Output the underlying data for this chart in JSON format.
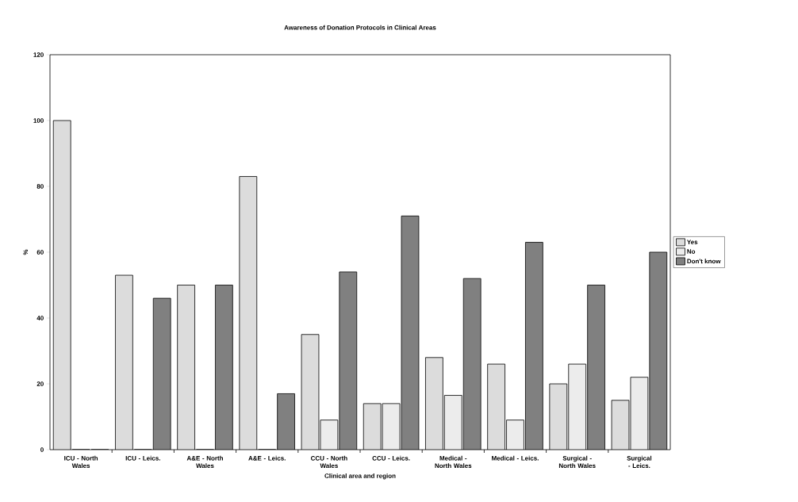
{
  "chart_data": {
    "type": "bar",
    "title": "Awareness of Donation Protocols in Clinical Areas",
    "xlabel": "Clinical area and region",
    "ylabel": "%",
    "categories": [
      "ICU - North Wales",
      "ICU - Leics.",
      "A&E - North Wales",
      "A&E - Leics.",
      "CCU - North Wales",
      "CCU - Leics.",
      "Medical - North Wales",
      "Medical - Leics.",
      "Surgical - North Wales",
      "Surgical - Leics."
    ],
    "series": [
      {
        "name": "Yes",
        "color": "#dcdcdc",
        "values": [
          100,
          53,
          50,
          83,
          35,
          14,
          28,
          26,
          20,
          15
        ]
      },
      {
        "name": "No",
        "color": "#ececec",
        "values": [
          0,
          0,
          0,
          0,
          9,
          14,
          16.5,
          9,
          26,
          22
        ]
      },
      {
        "name": "Don't know",
        "color": "#808080",
        "values": [
          0,
          46,
          50,
          17,
          54,
          71,
          52,
          63,
          50,
          60
        ]
      }
    ],
    "ylim": [
      0,
      120
    ],
    "yticks": [
      0,
      20,
      40,
      60,
      80,
      100,
      120
    ],
    "legend": "right",
    "grid": false
  }
}
